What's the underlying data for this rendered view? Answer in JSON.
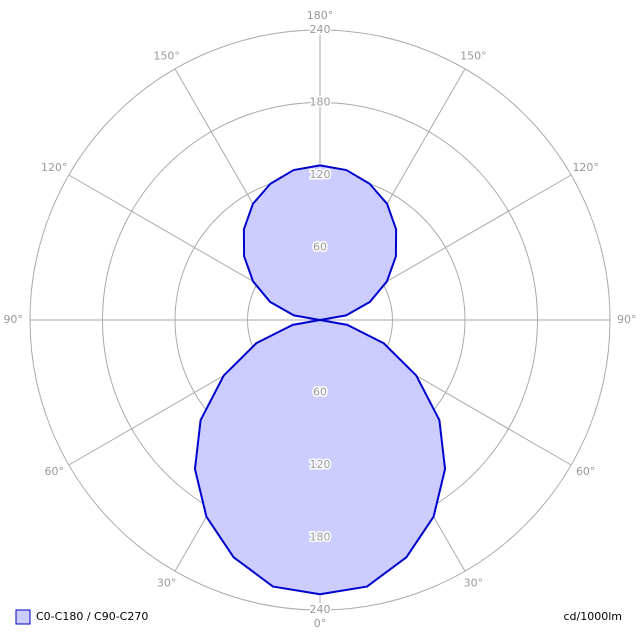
{
  "chart_data": {
    "type": "polar",
    "rlim": [
      0,
      240
    ],
    "rticks": [
      60,
      120,
      180,
      240
    ],
    "angle_ticks": [
      {
        "value": 0,
        "label": "0°"
      },
      {
        "value": 30,
        "label": "30°"
      },
      {
        "value": 60,
        "label": "60°"
      },
      {
        "value": 90,
        "label": "90°"
      },
      {
        "value": 120,
        "label": "120°"
      },
      {
        "value": 150,
        "label": "150°"
      },
      {
        "value": 180,
        "label": "180°"
      }
    ],
    "x": [
      0,
      10,
      20,
      30,
      40,
      50,
      60,
      70,
      80,
      90,
      100,
      110,
      120,
      130,
      140,
      150,
      160,
      170,
      180
    ],
    "series": [
      {
        "name": "C0-C180 / C90-C270",
        "color": "#0000cc",
        "fill": "#ccccff",
        "values": [
          227,
          224,
          209,
          188,
          161,
          129,
          92,
          56,
          23,
          0,
          22,
          44,
          64,
          82,
          98,
          111,
          120,
          126,
          128
        ]
      }
    ],
    "unit": "cd/1000lm"
  }
}
